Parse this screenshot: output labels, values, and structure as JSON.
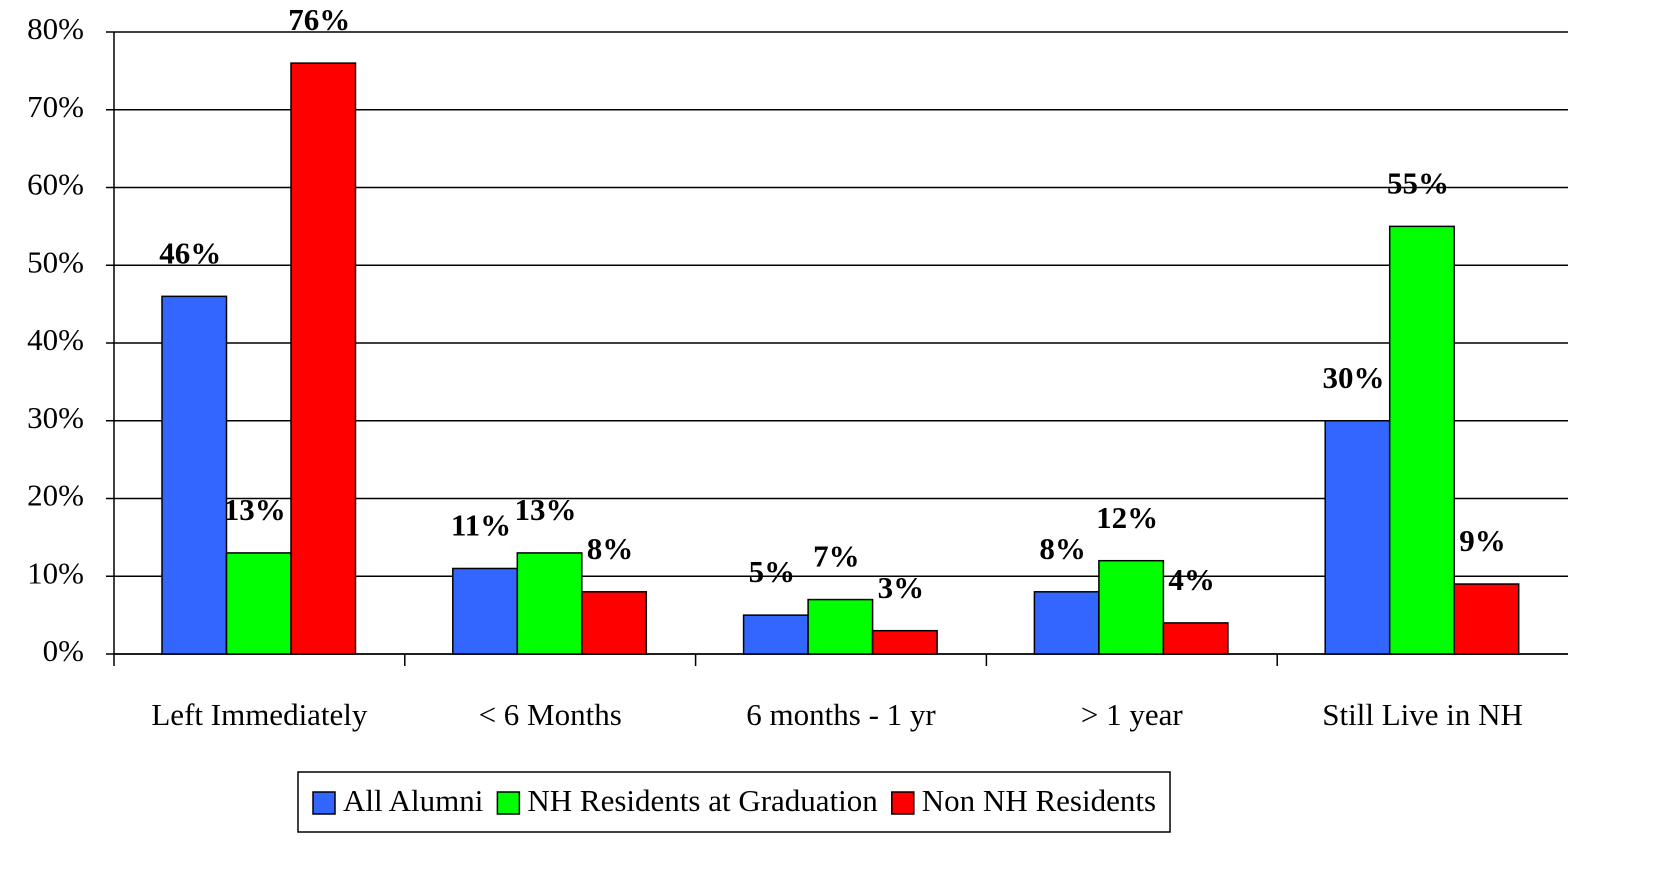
{
  "chart_data": {
    "type": "bar",
    "categories": [
      "Left Immediately",
      "< 6 Months",
      "6 months - 1 yr",
      "> 1 year",
      "Still Live in NH"
    ],
    "series": [
      {
        "name": "All Alumni",
        "color": "#3366ff",
        "values": [
          46,
          11,
          5,
          8,
          30
        ],
        "value_labels": [
          "46%",
          "11%",
          "5%",
          "8%",
          "30%"
        ]
      },
      {
        "name": "NH Residents at Graduation",
        "color": "#00ff00",
        "values": [
          13,
          13,
          7,
          12,
          55
        ],
        "value_labels": [
          "13%",
          "13%",
          "7%",
          "12%",
          "55%"
        ]
      },
      {
        "name": "Non NH Residents",
        "color": "#ff0000",
        "values": [
          76,
          8,
          3,
          4,
          9
        ],
        "value_labels": [
          "76%",
          "8%",
          "3%",
          "4%",
          "9%"
        ]
      }
    ],
    "ylim": [
      0,
      80
    ],
    "yticks": [
      {
        "value": 0,
        "label": "0%"
      },
      {
        "value": 10,
        "label": "10%"
      },
      {
        "value": 20,
        "label": "20%"
      },
      {
        "value": 30,
        "label": "30%"
      },
      {
        "value": 40,
        "label": "40%"
      },
      {
        "value": 50,
        "label": "50%"
      },
      {
        "value": 60,
        "label": "60%"
      },
      {
        "value": 70,
        "label": "70%"
      },
      {
        "value": 80,
        "label": "80%"
      }
    ],
    "grid": true,
    "legend": "bottom"
  }
}
